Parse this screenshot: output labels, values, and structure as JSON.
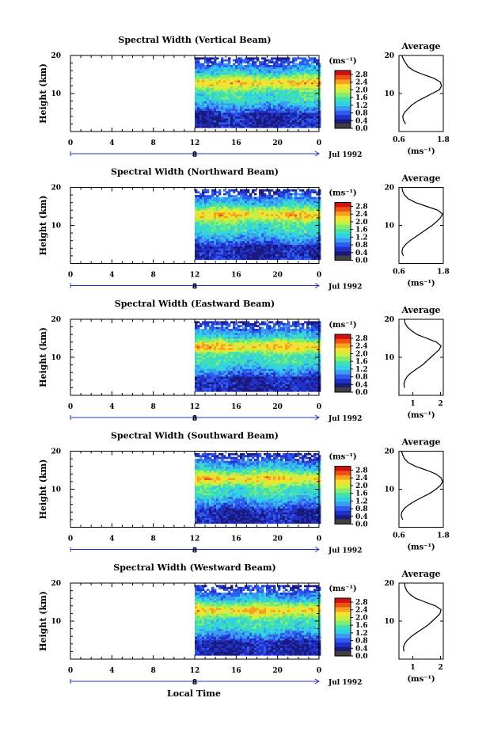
{
  "figure": {
    "xlabel": "Local Time",
    "date_label": "Jul 1992",
    "date_marker": "8",
    "cbar_unit": "(ms⁻¹)",
    "avg_title": "Average",
    "avg_unit": "(ms⁻¹)"
  },
  "chart_data": [
    {
      "type": "heatmap",
      "title": "Spectral Width (Vertical Beam)",
      "ylabel": "Height (km)",
      "x_ticks": [
        "0",
        "4",
        "8",
        "12",
        "16",
        "20",
        "0"
      ],
      "y_ticks": [
        "20",
        "10"
      ],
      "xlim": [
        0,
        24
      ],
      "ylim": [
        0,
        20
      ],
      "data_start_hour": 12,
      "colorbar_ticks": [
        "2.8",
        "2.4",
        "2.0",
        "1.6",
        "1.2",
        "0.8",
        "0.4",
        "0.0"
      ],
      "colorbar_range": [
        0,
        3.0
      ],
      "average_profile": {
        "xlim": [
          0.6,
          1.8
        ],
        "x_ticks": [
          "0.6",
          "1.8"
        ],
        "y_ticks": [
          "20",
          "10"
        ],
        "height_km": [
          2,
          3,
          4,
          5,
          6,
          7,
          8,
          9,
          10,
          11,
          12,
          13,
          14,
          15,
          16,
          17,
          18,
          19,
          20
        ],
        "width": [
          0.78,
          0.72,
          0.7,
          0.75,
          0.85,
          0.95,
          1.1,
          1.3,
          1.5,
          1.7,
          1.75,
          1.72,
          1.55,
          1.25,
          1.0,
          0.85,
          0.78,
          0.72,
          0.68
        ]
      }
    },
    {
      "type": "heatmap",
      "title": "Spectral Width (Northward Beam)",
      "ylabel": "Height (km)",
      "x_ticks": [
        "0",
        "4",
        "8",
        "12",
        "16",
        "20",
        "0"
      ],
      "y_ticks": [
        "20",
        "10"
      ],
      "xlim": [
        0,
        24
      ],
      "ylim": [
        0,
        20
      ],
      "data_start_hour": 12,
      "colorbar_ticks": [
        "2.8",
        "2.4",
        "2.0",
        "1.6",
        "1.2",
        "0.8",
        "0.4",
        "0.0"
      ],
      "colorbar_range": [
        0,
        3.0
      ],
      "average_profile": {
        "xlim": [
          0.6,
          1.8
        ],
        "x_ticks": [
          "0.6",
          "1.8"
        ],
        "y_ticks": [
          "20",
          "10"
        ],
        "height_km": [
          2,
          3,
          4,
          5,
          6,
          7,
          8,
          9,
          10,
          11,
          12,
          13,
          14,
          15,
          16,
          17,
          18,
          19,
          20
        ],
        "width": [
          0.72,
          0.68,
          0.7,
          0.78,
          0.9,
          1.05,
          1.2,
          1.35,
          1.5,
          1.62,
          1.72,
          1.78,
          1.65,
          1.35,
          1.05,
          0.85,
          0.75,
          0.7,
          0.68
        ]
      }
    },
    {
      "type": "heatmap",
      "title": "Spectral Width (Eastward Beam)",
      "ylabel": "Height (km)",
      "x_ticks": [
        "0",
        "4",
        "8",
        "12",
        "16",
        "20",
        "0"
      ],
      "y_ticks": [
        "20",
        "10"
      ],
      "xlim": [
        0,
        24
      ],
      "ylim": [
        0,
        20
      ],
      "data_start_hour": 12,
      "colorbar_ticks": [
        "2.8",
        "2.4",
        "2.0",
        "1.6",
        "1.2",
        "0.8",
        "0.4",
        "0.0"
      ],
      "colorbar_range": [
        0,
        3.0
      ],
      "average_profile": {
        "xlim": [
          0.5,
          2.1
        ],
        "x_ticks": [
          "1",
          "2"
        ],
        "y_ticks": [
          "20",
          "10"
        ],
        "height_km": [
          2,
          3,
          4,
          5,
          6,
          7,
          8,
          9,
          10,
          11,
          12,
          13,
          14,
          15,
          16,
          17,
          18,
          19,
          20
        ],
        "width": [
          0.7,
          0.68,
          0.72,
          0.8,
          0.95,
          1.15,
          1.35,
          1.5,
          1.65,
          1.8,
          1.95,
          2.02,
          1.85,
          1.5,
          1.15,
          0.95,
          0.8,
          0.72,
          0.7
        ]
      }
    },
    {
      "type": "heatmap",
      "title": "Spectral Width (Southward Beam)",
      "ylabel": "Height (km)",
      "x_ticks": [
        "0",
        "4",
        "8",
        "12",
        "16",
        "20",
        "0"
      ],
      "y_ticks": [
        "20",
        "10"
      ],
      "xlim": [
        0,
        24
      ],
      "ylim": [
        0,
        20
      ],
      "data_start_hour": 12,
      "colorbar_ticks": [
        "2.8",
        "2.4",
        "2.0",
        "1.6",
        "1.2",
        "0.8",
        "0.4",
        "0.0"
      ],
      "colorbar_range": [
        0,
        3.0
      ],
      "average_profile": {
        "xlim": [
          0.6,
          1.8
        ],
        "x_ticks": [
          "0.6",
          "1.8"
        ],
        "y_ticks": [
          "20",
          "10"
        ],
        "height_km": [
          2,
          3,
          4,
          5,
          6,
          7,
          8,
          9,
          10,
          11,
          12,
          13,
          14,
          15,
          16,
          17,
          18,
          19,
          20
        ],
        "width": [
          0.7,
          0.66,
          0.68,
          0.75,
          0.88,
          1.05,
          1.25,
          1.45,
          1.6,
          1.72,
          1.78,
          1.74,
          1.6,
          1.35,
          1.05,
          0.85,
          0.75,
          0.7,
          0.67
        ]
      }
    },
    {
      "type": "heatmap",
      "title": "Spectral Width (Westward Beam)",
      "ylabel": "Height (km)",
      "x_ticks": [
        "0",
        "4",
        "8",
        "12",
        "16",
        "20",
        "0"
      ],
      "y_ticks": [
        "20",
        "10"
      ],
      "xlim": [
        0,
        24
      ],
      "ylim": [
        0,
        20
      ],
      "data_start_hour": 12,
      "colorbar_ticks": [
        "2.8",
        "2.4",
        "2.0",
        "1.6",
        "1.2",
        "0.8",
        "0.4",
        "0.0"
      ],
      "colorbar_range": [
        0,
        3.0
      ],
      "average_profile": {
        "xlim": [
          0.5,
          2.1
        ],
        "x_ticks": [
          "1",
          "2"
        ],
        "y_ticks": [
          "20",
          "10"
        ],
        "height_km": [
          2,
          3,
          4,
          5,
          6,
          7,
          8,
          9,
          10,
          11,
          12,
          13,
          14,
          15,
          16,
          17,
          18,
          19,
          20
        ],
        "width": [
          0.68,
          0.66,
          0.7,
          0.8,
          0.95,
          1.15,
          1.35,
          1.55,
          1.7,
          1.85,
          1.98,
          2.02,
          1.82,
          1.45,
          1.1,
          0.9,
          0.78,
          0.72,
          0.7
        ]
      }
    }
  ],
  "colors": {
    "colormap": [
      "#1a1a7a",
      "#2030c8",
      "#2f5cf0",
      "#3b9cf0",
      "#30d0e8",
      "#40e0b0",
      "#80ec70",
      "#c8f040",
      "#f8e030",
      "#f8a020",
      "#f05010",
      "#d01010"
    ],
    "cbar_floor": "#404040",
    "axis": "#000000",
    "time_arrow": "#2030c8"
  }
}
